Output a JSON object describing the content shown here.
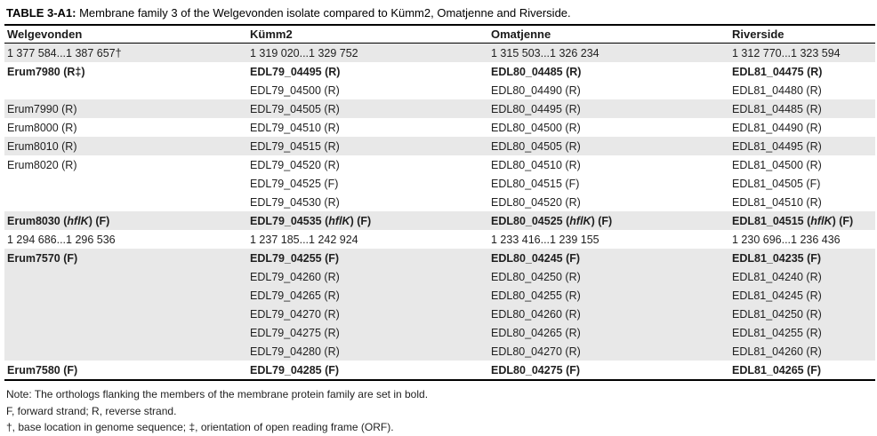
{
  "title": {
    "label": "TABLE 3-A1:",
    "text": " Membrane family 3 of the Welgevonden isolate compared to Kümm2, Omatjenne and Riverside."
  },
  "colors": {
    "row_shade": "#e8e8e8",
    "rule": "#000000"
  },
  "table": {
    "columns": [
      "Welgevonden",
      "Kümm2",
      "Omatjenne",
      "Riverside"
    ],
    "rows": [
      [
        "1 377 584...1 387 657†",
        "1 319 020...1 329 752",
        "1 315 503...1 326 234",
        "1 312 770...1 323 594"
      ],
      [
        "Erum7980 (R‡)",
        "EDL79_04495 (R)",
        "EDL80_04485 (R)",
        "EDL81_04475 (R)"
      ],
      [
        "",
        "EDL79_04500 (R)",
        "EDL80_04490 (R)",
        "EDL81_04480 (R)"
      ],
      [
        "Erum7990 (R)",
        "EDL79_04505 (R)",
        "EDL80_04495 (R)",
        "EDL81_04485 (R)"
      ],
      [
        "Erum8000 (R)",
        "EDL79_04510 (R)",
        "EDL80_04500 (R)",
        "EDL81_04490 (R)"
      ],
      [
        "Erum8010 (R)",
        "EDL79_04515 (R)",
        "EDL80_04505 (R)",
        "EDL81_04495 (R)"
      ],
      [
        "Erum8020 (R)",
        "EDL79_04520 (R)",
        "EDL80_04510 (R)",
        "EDL81_04500 (R)"
      ],
      [
        "",
        "EDL79_04525 (F)",
        "EDL80_04515 (F)",
        "EDL81_04505 (F)"
      ],
      [
        "",
        "EDL79_04530 (R)",
        "EDL80_04520 (R)",
        "EDL81_04510 (R)"
      ],
      [
        {
          "pre": "Erum8030 (",
          "it": "hflK",
          "post": ") (F)"
        },
        {
          "pre": "EDL79_04535 (",
          "it": "hflK",
          "post": ") (F)"
        },
        {
          "pre": "EDL80_04525 (",
          "it": "hflK",
          "post": ") (F)"
        },
        {
          "pre": "EDL81_04515 (",
          "it": "hflK",
          "post": ") (F)"
        }
      ],
      [
        "1 294 686...1 296 536",
        "1 237 185...1 242 924",
        "1 233 416...1 239 155",
        "1 230 696...1 236 436"
      ],
      [
        "Erum7570 (F)",
        "EDL79_04255 (F)",
        "EDL80_04245 (F)",
        "EDL81_04235 (F)"
      ],
      [
        "",
        "EDL79_04260 (R)",
        "EDL80_04250 (R)",
        "EDL81_04240 (R)"
      ],
      [
        "",
        "EDL79_04265 (R)",
        "EDL80_04255 (R)",
        "EDL81_04245 (R)"
      ],
      [
        "",
        "EDL79_04270 (R)",
        "EDL80_04260 (R)",
        "EDL81_04250 (R)"
      ],
      [
        "",
        "EDL79_04275 (R)",
        "EDL80_04265 (R)",
        "EDL81_04255 (R)"
      ],
      [
        "",
        "EDL79_04280 (R)",
        "EDL80_04270 (R)",
        "EDL81_04260 (R)"
      ],
      [
        "Erum7580 (F)",
        "EDL79_04285 (F)",
        "EDL80_04275 (F)",
        "EDL81_04265 (F)"
      ]
    ]
  },
  "notes": [
    "Note: The orthologs flanking the members of the membrane protein family are set in bold.",
    "F, forward strand; R, reverse strand.",
    "†, base location in genome sequence; ‡, orientation of open reading frame (ORF)."
  ]
}
